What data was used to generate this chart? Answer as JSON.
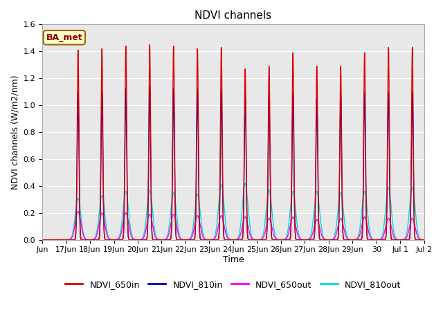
{
  "title": "NDVI channels",
  "xlabel": "Time",
  "ylabel": "NDVI channels (W/m2/nm)",
  "ylim": [
    0.0,
    1.6
  ],
  "colors": {
    "NDVI_650in": "#dd0000",
    "NDVI_810in": "#0000cc",
    "NDVI_650out": "#ff00ff",
    "NDVI_810out": "#00dddd"
  },
  "annotation_text": "BA_met",
  "bg_color": "#e8e8e8",
  "peak_650in": [
    1.41,
    1.42,
    1.44,
    1.45,
    1.44,
    1.42,
    1.43,
    1.27,
    1.29,
    1.39,
    1.29,
    1.29,
    1.39,
    1.43,
    1.43
  ],
  "peak_810in": [
    1.1,
    1.1,
    1.13,
    1.14,
    1.13,
    1.12,
    1.12,
    1.08,
    1.08,
    1.09,
    1.05,
    1.08,
    1.1,
    1.1,
    1.1
  ],
  "peak_650out": [
    0.21,
    0.2,
    0.2,
    0.19,
    0.19,
    0.18,
    0.18,
    0.17,
    0.16,
    0.17,
    0.15,
    0.16,
    0.17,
    0.16,
    0.16
  ],
  "peak_810out": [
    0.31,
    0.33,
    0.36,
    0.37,
    0.35,
    0.34,
    0.41,
    0.42,
    0.37,
    0.36,
    0.36,
    0.35,
    0.36,
    0.39,
    0.39
  ],
  "tick_labels": [
    "Jun",
    "17Jun",
    "18Jun",
    "19Jun",
    "20Jun",
    "21Jun",
    "22Jun",
    "23Jun",
    "24Jun",
    "25Jun",
    "26Jun",
    "27Jun",
    "28Jun",
    "29Jun",
    "30",
    "Jul 1",
    "Jul 2"
  ],
  "sigma_in": 0.9,
  "sigma_out": 2.8,
  "figsize": [
    6.4,
    4.8
  ],
  "dpi": 100
}
